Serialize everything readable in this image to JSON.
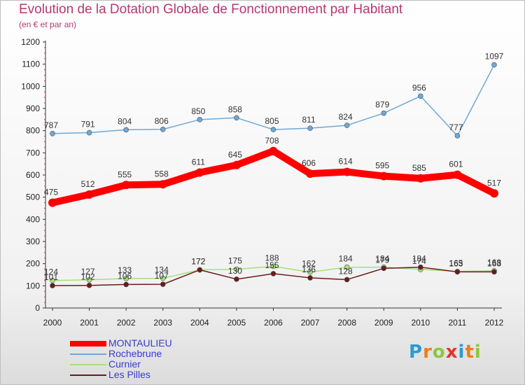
{
  "title": "Evolution de la Dotation Globale de Fonctionnement par Habitant",
  "subtitle": "(en € et par an)",
  "logo": {
    "letters": [
      "P",
      "r",
      "o",
      "x",
      "i",
      "t",
      "i"
    ],
    "colors": [
      "#2a9ad8",
      "#ef7c1a",
      "#8cc63f",
      "#e6332a",
      "#2a9ad8",
      "#ef7c1a",
      "#8cc63f"
    ]
  },
  "chart_data": {
    "type": "line",
    "x": [
      "2000",
      "2001",
      "2002",
      "2003",
      "2004",
      "2005",
      "2006",
      "2007",
      "2008",
      "2009",
      "2010",
      "2011",
      "2012"
    ],
    "ylim": [
      0,
      1200
    ],
    "yticks": [
      "0",
      "100",
      "200",
      "300",
      "400",
      "500",
      "600",
      "700",
      "800",
      "900",
      "1000",
      "1100",
      "1200"
    ],
    "grid": false,
    "legend_position": "bottom-left",
    "series": [
      {
        "name": "MONTAULIEU",
        "color": "#ff0000",
        "values": [
          475,
          512,
          555,
          558,
          611,
          645,
          708,
          606,
          614,
          595,
          585,
          601,
          517
        ],
        "labels": [
          "475",
          "512",
          "555",
          "558",
          "611",
          "645",
          "708",
          "606",
          "614",
          "595",
          "585",
          "601",
          "517"
        ]
      },
      {
        "name": "Rochebrune",
        "color": "#6ea8d8",
        "values": [
          787,
          791,
          804,
          806,
          850,
          858,
          805,
          811,
          824,
          879,
          956,
          777,
          1097
        ],
        "labels": [
          "787",
          "791",
          "804",
          "806",
          "850",
          "858",
          "805",
          "811",
          "824",
          "879",
          "956",
          "777",
          "1097"
        ]
      },
      {
        "name": "Curnier",
        "color": "#a6e07a",
        "values": [
          124,
          127,
          133,
          134,
          172,
          175,
          188,
          162,
          184,
          184,
          174,
          165,
          168
        ],
        "labels": [
          "124",
          "127",
          "133",
          "134",
          "172",
          "175",
          "188",
          "162",
          "184",
          "184",
          "174",
          "165",
          "168"
        ]
      },
      {
        "name": "Les Pilles",
        "color": "#6b1a1a",
        "values": [
          101,
          102,
          106,
          107,
          172,
          130,
          155,
          136,
          128,
          179,
          184,
          163,
          163
        ],
        "labels": [
          "101",
          "102",
          "106",
          "107",
          "172",
          "130",
          "155",
          "136",
          "128",
          "179",
          "184",
          "163",
          "163"
        ]
      }
    ]
  }
}
